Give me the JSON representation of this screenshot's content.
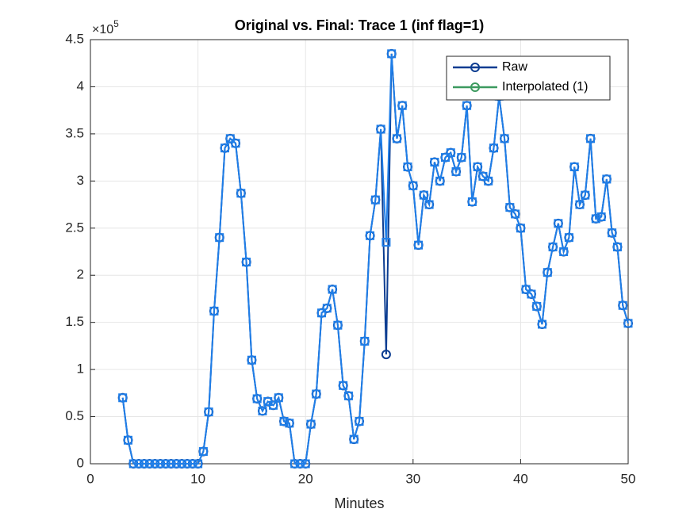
{
  "chart_data": {
    "type": "line",
    "title": "Original vs. Final: Trace 1 (inf flag=1)",
    "x_label": "Minutes",
    "y_multiplier": {
      "base": "×10",
      "exponent": "5"
    },
    "x": [
      3,
      3.5,
      4,
      4.5,
      5,
      5.5,
      6,
      6.5,
      7,
      7.5,
      8,
      8.5,
      9,
      9.5,
      10,
      10.5,
      11,
      11.5,
      12,
      12.5,
      13,
      13.5,
      14,
      14.5,
      15,
      15.5,
      16,
      16.5,
      17,
      17.5,
      18,
      18.5,
      19,
      19.5,
      20,
      20.5,
      21,
      21.5,
      22,
      22.5,
      23,
      23.5,
      24,
      24.5,
      25,
      25.5,
      26,
      26.5,
      27,
      27.5,
      28,
      28.5,
      29,
      29.5,
      30,
      30.5,
      31,
      31.5,
      32,
      32.5,
      33,
      33.5,
      34,
      34.5,
      35,
      35.5,
      36,
      36.5,
      37,
      37.5,
      38,
      38.5,
      39,
      39.5,
      40,
      40.5,
      41,
      41.5,
      42,
      42.5,
      43,
      43.5,
      44,
      44.5,
      45,
      45.5,
      46,
      46.5,
      47,
      47.5,
      48,
      48.5,
      49,
      49.5,
      50
    ],
    "series": [
      {
        "name": "Raw",
        "color": "#0c3d91",
        "legend_color": "#0c3d91",
        "marker": "circle",
        "values": [
          0.7,
          0.25,
          0,
          0,
          0,
          0,
          0,
          0,
          0,
          0,
          0,
          0,
          0,
          0,
          0,
          0.13,
          0.55,
          1.62,
          2.4,
          3.35,
          3.45,
          3.4,
          2.87,
          2.14,
          1.1,
          0.69,
          0.56,
          0.66,
          0.62,
          0.7,
          0.45,
          0.43,
          0,
          0,
          0,
          0.42,
          0.74,
          1.6,
          1.65,
          1.85,
          1.47,
          0.83,
          0.72,
          0.26,
          0.45,
          1.3,
          2.42,
          2.8,
          3.55,
          1.16,
          4.35,
          3.45,
          3.8,
          3.15,
          2.95,
          2.32,
          2.85,
          2.75,
          3.2,
          3.0,
          3.25,
          3.3,
          3.1,
          3.25,
          3.8,
          2.78,
          3.15,
          3.05,
          3.0,
          3.35,
          3.9,
          3.45,
          2.72,
          2.65,
          2.5,
          1.85,
          1.8,
          1.67,
          1.48,
          2.03,
          2.3,
          2.55,
          2.25,
          2.4,
          3.15,
          2.75,
          2.85,
          3.45,
          2.6,
          2.62,
          3.02,
          2.45,
          2.3,
          1.68,
          1.49
        ]
      },
      {
        "name": "Interpolated (1)",
        "color": "#1f7ee8",
        "legend_color": "#3c9a5f",
        "marker": "square",
        "values": [
          0.7,
          0.25,
          0,
          0,
          0,
          0,
          0,
          0,
          0,
          0,
          0,
          0,
          0,
          0,
          0,
          0.13,
          0.55,
          1.62,
          2.4,
          3.35,
          3.45,
          3.4,
          2.87,
          2.14,
          1.1,
          0.69,
          0.56,
          0.66,
          0.62,
          0.7,
          0.45,
          0.43,
          0,
          0,
          0,
          0.42,
          0.74,
          1.6,
          1.65,
          1.85,
          1.47,
          0.83,
          0.72,
          0.26,
          0.45,
          1.3,
          2.42,
          2.8,
          3.55,
          2.35,
          4.35,
          3.45,
          3.8,
          3.15,
          2.95,
          2.32,
          2.85,
          2.75,
          3.2,
          3.0,
          3.25,
          3.3,
          3.1,
          3.25,
          3.8,
          2.78,
          3.15,
          3.05,
          3.0,
          3.35,
          3.9,
          3.45,
          2.72,
          2.65,
          2.5,
          1.85,
          1.8,
          1.67,
          1.48,
          2.03,
          2.3,
          2.55,
          2.25,
          2.4,
          3.15,
          2.75,
          2.85,
          3.45,
          2.6,
          2.62,
          3.02,
          2.45,
          2.3,
          1.68,
          1.49
        ]
      }
    ],
    "xlim": [
      0,
      50
    ],
    "xticks": [
      0,
      10,
      20,
      30,
      40,
      50
    ],
    "ylim": [
      0,
      4.5
    ],
    "yticks": [
      0,
      0.5,
      1,
      1.5,
      2,
      2.5,
      3,
      3.5,
      4,
      4.5
    ],
    "grid": true,
    "legend": "northeast"
  }
}
